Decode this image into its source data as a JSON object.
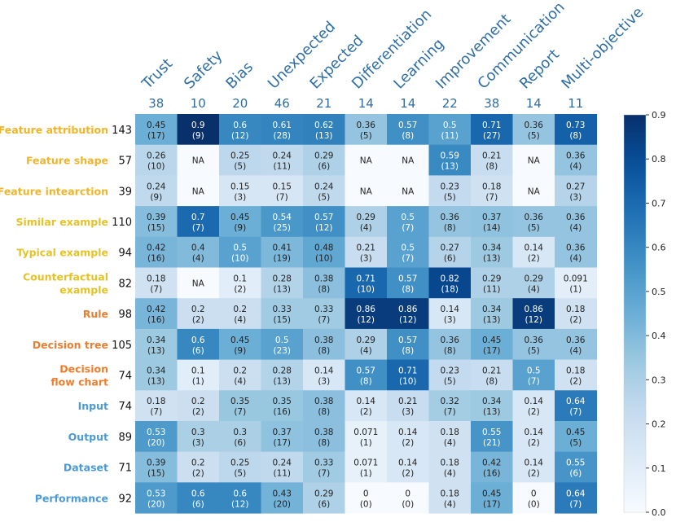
{
  "chart_data": {
    "type": "heatmap",
    "colormap": "Blues",
    "value_range": [
      0,
      0.9
    ],
    "columns": [
      {
        "name": "Trust",
        "count": "38"
      },
      {
        "name": "Safety",
        "count": "10"
      },
      {
        "name": "Bias",
        "count": "20"
      },
      {
        "name": "Unexpected",
        "count": "46"
      },
      {
        "name": "Expected",
        "count": "21"
      },
      {
        "name": "Differentiation",
        "count": "14"
      },
      {
        "name": "Learning",
        "count": "14"
      },
      {
        "name": "Improvement",
        "count": "22"
      },
      {
        "name": "Communication",
        "count": "38"
      },
      {
        "name": "Report",
        "count": "14"
      },
      {
        "name": "Multi-objective",
        "count": "11"
      }
    ],
    "rows": [
      {
        "label": [
          "Feature attribution"
        ],
        "count": "143",
        "color": "#f0b429",
        "cells": [
          [
            "0.45",
            "(17)"
          ],
          [
            "0.9",
            "(9)"
          ],
          [
            "0.6",
            "(12)"
          ],
          [
            "0.61",
            "(28)"
          ],
          [
            "0.62",
            "(13)"
          ],
          [
            "0.36",
            "(5)"
          ],
          [
            "0.57",
            "(8)"
          ],
          [
            "0.5",
            "(11)"
          ],
          [
            "0.71",
            "(27)"
          ],
          [
            "0.36",
            "(5)"
          ],
          [
            "0.73",
            "(8)"
          ]
        ]
      },
      {
        "label": [
          "Feature shape"
        ],
        "count": "57",
        "color": "#f0b429",
        "cells": [
          [
            "0.26",
            "(10)"
          ],
          [
            "NA",
            ""
          ],
          [
            "0.25",
            "(5)"
          ],
          [
            "0.24",
            "(11)"
          ],
          [
            "0.29",
            "(6)"
          ],
          [
            "NA",
            ""
          ],
          [
            "NA",
            ""
          ],
          [
            "0.59",
            "(13)"
          ],
          [
            "0.21",
            "(8)"
          ],
          [
            "NA",
            ""
          ],
          [
            "0.36",
            "(4)"
          ]
        ]
      },
      {
        "label": [
          "Feature intearction"
        ],
        "count": "39",
        "color": "#f0b429",
        "cells": [
          [
            "0.24",
            "(9)"
          ],
          [
            "NA",
            ""
          ],
          [
            "0.15",
            "(3)"
          ],
          [
            "0.15",
            "(7)"
          ],
          [
            "0.24",
            "(5)"
          ],
          [
            "NA",
            ""
          ],
          [
            "NA",
            ""
          ],
          [
            "0.23",
            "(5)"
          ],
          [
            "0.18",
            "(7)"
          ],
          [
            "NA",
            ""
          ],
          [
            "0.27",
            "(3)"
          ]
        ]
      },
      {
        "label": [
          "Similar example"
        ],
        "count": "110",
        "color": "#e6c229",
        "cells": [
          [
            "0.39",
            "(15)"
          ],
          [
            "0.7",
            "(7)"
          ],
          [
            "0.45",
            "(9)"
          ],
          [
            "0.54",
            "(25)"
          ],
          [
            "0.57",
            "(12)"
          ],
          [
            "0.29",
            "(4)"
          ],
          [
            "0.5",
            "(7)"
          ],
          [
            "0.36",
            "(8)"
          ],
          [
            "0.37",
            "(14)"
          ],
          [
            "0.36",
            "(5)"
          ],
          [
            "0.36",
            "(4)"
          ]
        ]
      },
      {
        "label": [
          "Typical example"
        ],
        "count": "94",
        "color": "#e6c229",
        "cells": [
          [
            "0.42",
            "(16)"
          ],
          [
            "0.4",
            "(4)"
          ],
          [
            "0.5",
            "(10)"
          ],
          [
            "0.41",
            "(19)"
          ],
          [
            "0.48",
            "(10)"
          ],
          [
            "0.21",
            "(3)"
          ],
          [
            "0.5",
            "(7)"
          ],
          [
            "0.27",
            "(6)"
          ],
          [
            "0.34",
            "(13)"
          ],
          [
            "0.14",
            "(2)"
          ],
          [
            "0.36",
            "(4)"
          ]
        ]
      },
      {
        "label": [
          "Counterfactual",
          "example"
        ],
        "count": "82",
        "color": "#e6c229",
        "cells": [
          [
            "0.18",
            "(7)"
          ],
          [
            "NA",
            ""
          ],
          [
            "0.1",
            "(2)"
          ],
          [
            "0.28",
            "(13)"
          ],
          [
            "0.38",
            "(8)"
          ],
          [
            "0.71",
            "(10)"
          ],
          [
            "0.57",
            "(8)"
          ],
          [
            "0.82",
            "(18)"
          ],
          [
            "0.29",
            "(11)"
          ],
          [
            "0.29",
            "(4)"
          ],
          [
            "0.091",
            "(1)"
          ]
        ]
      },
      {
        "label": [
          "Rule"
        ],
        "count": "98",
        "color": "#ee7d2e",
        "cells": [
          [
            "0.42",
            "(16)"
          ],
          [
            "0.2",
            "(2)"
          ],
          [
            "0.2",
            "(4)"
          ],
          [
            "0.33",
            "(15)"
          ],
          [
            "0.33",
            "(7)"
          ],
          [
            "0.86",
            "(12)"
          ],
          [
            "0.86",
            "(12)"
          ],
          [
            "0.14",
            "(3)"
          ],
          [
            "0.34",
            "(13)"
          ],
          [
            "0.86",
            "(12)"
          ],
          [
            "0.18",
            "(2)"
          ]
        ]
      },
      {
        "label": [
          "Decision tree"
        ],
        "count": "105",
        "color": "#ee7d2e",
        "cells": [
          [
            "0.34",
            "(13)"
          ],
          [
            "0.6",
            "(6)"
          ],
          [
            "0.45",
            "(9)"
          ],
          [
            "0.5",
            "(23)"
          ],
          [
            "0.38",
            "(8)"
          ],
          [
            "0.29",
            "(4)"
          ],
          [
            "0.57",
            "(8)"
          ],
          [
            "0.36",
            "(8)"
          ],
          [
            "0.45",
            "(17)"
          ],
          [
            "0.36",
            "(5)"
          ],
          [
            "0.36",
            "(4)"
          ]
        ]
      },
      {
        "label": [
          "Decision",
          "flow chart"
        ],
        "count": "74",
        "color": "#ee7d2e",
        "cells": [
          [
            "0.34",
            "(13)"
          ],
          [
            "0.1",
            "(1)"
          ],
          [
            "0.2",
            "(4)"
          ],
          [
            "0.28",
            "(13)"
          ],
          [
            "0.14",
            "(3)"
          ],
          [
            "0.57",
            "(8)"
          ],
          [
            "0.71",
            "(10)"
          ],
          [
            "0.23",
            "(5)"
          ],
          [
            "0.21",
            "(8)"
          ],
          [
            "0.5",
            "(7)"
          ],
          [
            "0.18",
            "(2)"
          ]
        ]
      },
      {
        "label": [
          "Input"
        ],
        "count": "74",
        "color": "#4a9ad8",
        "cells": [
          [
            "0.18",
            "(7)"
          ],
          [
            "0.2",
            "(2)"
          ],
          [
            "0.35",
            "(7)"
          ],
          [
            "0.35",
            "(16)"
          ],
          [
            "0.38",
            "(8)"
          ],
          [
            "0.14",
            "(2)"
          ],
          [
            "0.21",
            "(3)"
          ],
          [
            "0.32",
            "(7)"
          ],
          [
            "0.34",
            "(13)"
          ],
          [
            "0.14",
            "(2)"
          ],
          [
            "0.64",
            "(7)"
          ]
        ]
      },
      {
        "label": [
          "Output"
        ],
        "count": "89",
        "color": "#4a9ad8",
        "cells": [
          [
            "0.53",
            "(20)"
          ],
          [
            "0.3",
            "(3)"
          ],
          [
            "0.3",
            "(6)"
          ],
          [
            "0.37",
            "(17)"
          ],
          [
            "0.38",
            "(8)"
          ],
          [
            "0.071",
            "(1)"
          ],
          [
            "0.14",
            "(2)"
          ],
          [
            "0.18",
            "(4)"
          ],
          [
            "0.55",
            "(21)"
          ],
          [
            "0.14",
            "(2)"
          ],
          [
            "0.45",
            "(5)"
          ]
        ]
      },
      {
        "label": [
          "Dataset"
        ],
        "count": "71",
        "color": "#4a9ad8",
        "cells": [
          [
            "0.39",
            "(15)"
          ],
          [
            "0.2",
            "(2)"
          ],
          [
            "0.25",
            "(5)"
          ],
          [
            "0.24",
            "(11)"
          ],
          [
            "0.33",
            "(7)"
          ],
          [
            "0.071",
            "(1)"
          ],
          [
            "0.14",
            "(2)"
          ],
          [
            "0.18",
            "(4)"
          ],
          [
            "0.42",
            "(16)"
          ],
          [
            "0.14",
            "(2)"
          ],
          [
            "0.55",
            "(6)"
          ]
        ]
      },
      {
        "label": [
          "Performance"
        ],
        "count": "92",
        "color": "#4a9ad8",
        "cells": [
          [
            "0.53",
            "(20)"
          ],
          [
            "0.6",
            "(6)"
          ],
          [
            "0.6",
            "(12)"
          ],
          [
            "0.43",
            "(20)"
          ],
          [
            "0.29",
            "(6)"
          ],
          [
            "0",
            "(0)"
          ],
          [
            "0",
            "(0)"
          ],
          [
            "0.18",
            "(4)"
          ],
          [
            "0.45",
            "(17)"
          ],
          [
            "0",
            "(0)"
          ],
          [
            "0.64",
            "(7)"
          ]
        ]
      }
    ],
    "colorbar": {
      "ticks": [
        "0.0",
        "0.1",
        "0.2",
        "0.3",
        "0.4",
        "0.5",
        "0.6",
        "0.7",
        "0.8",
        "0.9"
      ]
    },
    "col_header_color": "#2f6ea5"
  }
}
